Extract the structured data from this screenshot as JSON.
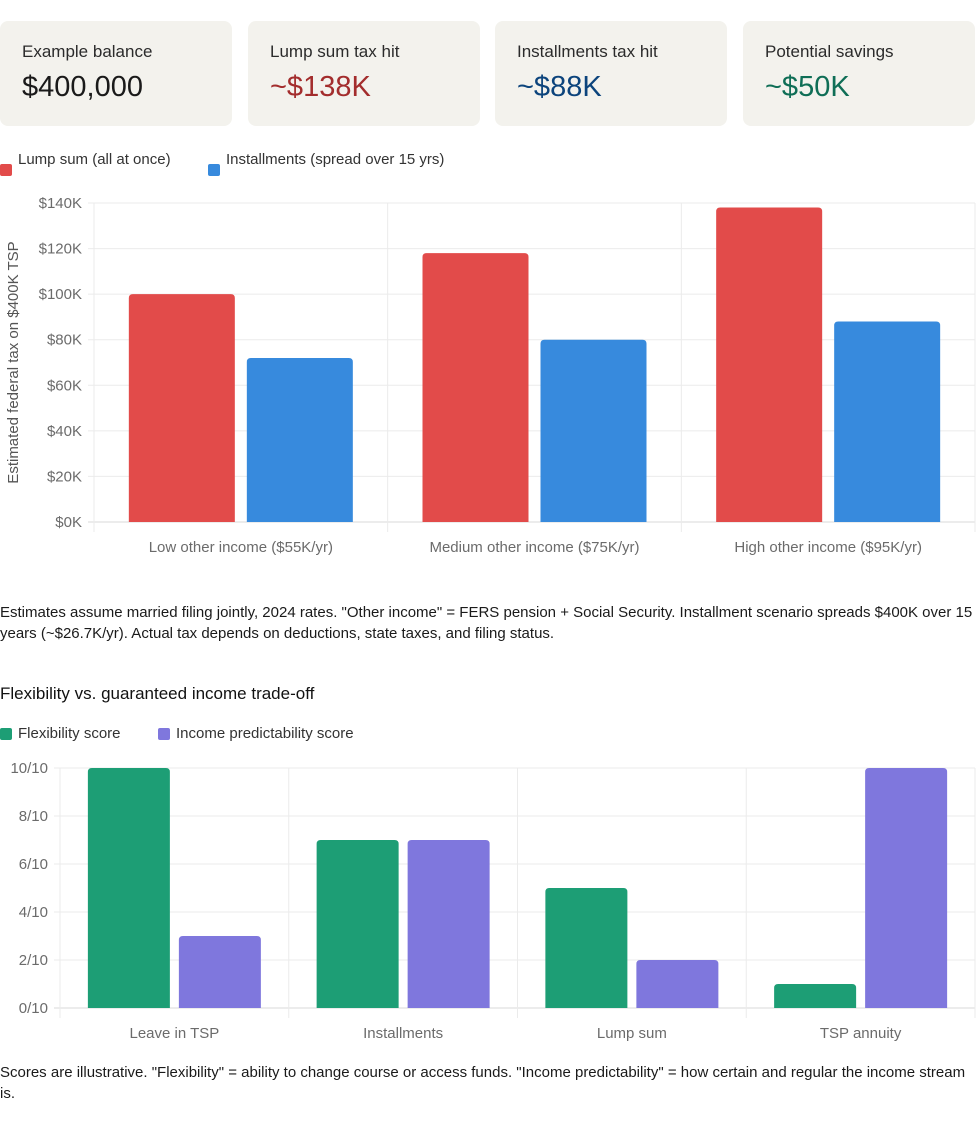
{
  "cards": [
    {
      "label": "Example balance",
      "value": "$400,000",
      "color": "#1a1a1a"
    },
    {
      "label": "Lump sum tax hit",
      "value": "~$138K",
      "color": "#a32d2d"
    },
    {
      "label": "Installments tax hit",
      "value": "~$88K",
      "color": "#0c447c"
    },
    {
      "label": "Potential savings",
      "value": "~$50K",
      "color": "#0f6e56"
    }
  ],
  "note1": "Estimates assume married filing jointly, 2024 rates. \"Other income\" = FERS pension + Social Security. Installment scenario spreads $400K over 15 years (~$26.7K/yr). Actual tax depends on deductions, state taxes, and filing status.",
  "section2_title": "Flexibility vs. guaranteed income trade-off",
  "note2": "Scores are illustrative. \"Flexibility\" = ability to change course or access funds. \"Income predictability\" = how certain and regular the income stream is.",
  "chart_data": [
    {
      "type": "bar",
      "categories": [
        "Low other income ($55K/yr)",
        "Medium other income ($75K/yr)",
        "High other income ($95K/yr)"
      ],
      "series": [
        {
          "name": "Lump sum (all at once)",
          "values": [
            100000,
            118000,
            138000
          ],
          "color": "#e24b4a"
        },
        {
          "name": "Installments (spread over 15 yrs)",
          "values": [
            72000,
            80000,
            88000
          ],
          "color": "#378add"
        }
      ],
      "ylabel": "Estimated federal tax on $400K TSP",
      "ylim": [
        0,
        140000
      ],
      "yticks": [
        "$0K",
        "$20K",
        "$40K",
        "$60K",
        "$80K",
        "$100K",
        "$120K",
        "$140K"
      ],
      "grid": true,
      "legend": "top-left"
    },
    {
      "type": "bar",
      "categories": [
        "Leave in TSP",
        "Installments",
        "Lump sum",
        "TSP annuity"
      ],
      "series": [
        {
          "name": "Flexibility score",
          "values": [
            10,
            7,
            5,
            1
          ],
          "color": "#1d9e75"
        },
        {
          "name": "Income predictability score",
          "values": [
            3,
            7,
            2,
            10
          ],
          "color": "#7f77dd"
        }
      ],
      "ylim": [
        0,
        10
      ],
      "yticks": [
        "0/10",
        "2/10",
        "4/10",
        "6/10",
        "8/10",
        "10/10"
      ],
      "grid": true,
      "legend": "top-left"
    }
  ]
}
